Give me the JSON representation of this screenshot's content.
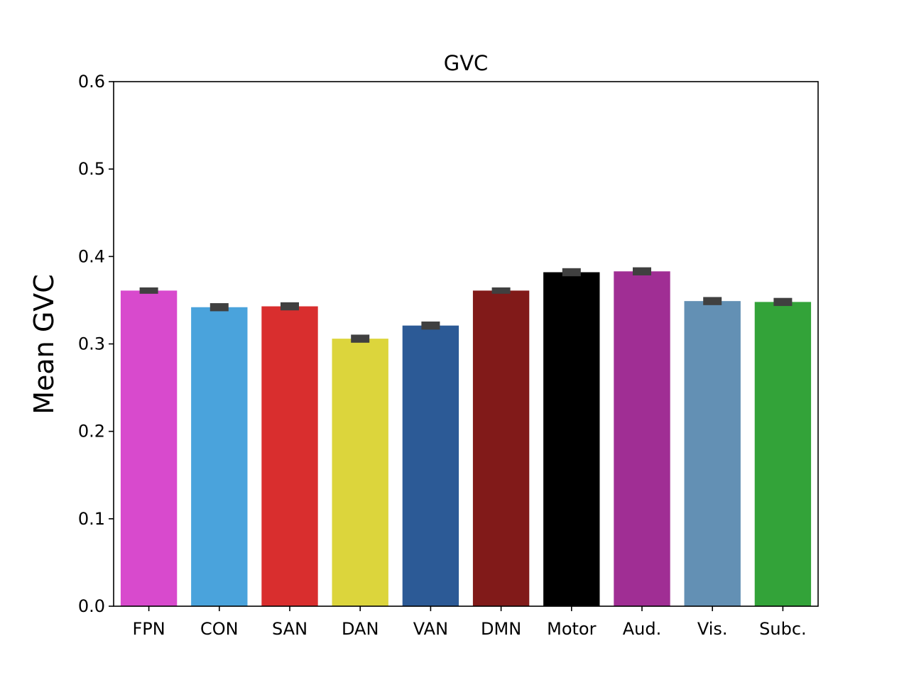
{
  "chart_data": {
    "type": "bar",
    "title": "GVC",
    "xlabel": "",
    "ylabel": "Mean GVC",
    "ylim": [
      0,
      0.6
    ],
    "yticks": [
      "0.0",
      "0.1",
      "0.2",
      "0.3",
      "0.4",
      "0.5",
      "0.6"
    ],
    "categories": [
      "FPN",
      "CON",
      "SAN",
      "DAN",
      "VAN",
      "DMN",
      "Motor",
      "Aud.",
      "Vis.",
      "Subc."
    ],
    "values": [
      0.361,
      0.342,
      0.343,
      0.306,
      0.321,
      0.361,
      0.382,
      0.383,
      0.349,
      0.348
    ],
    "errors": [
      0.002,
      0.003,
      0.003,
      0.003,
      0.003,
      0.002,
      0.003,
      0.003,
      0.003,
      0.003
    ],
    "colors": [
      "#d84acd",
      "#4aa3dc",
      "#d92e2e",
      "#dcd53c",
      "#2c5a96",
      "#811a19",
      "#000000",
      "#a02e94",
      "#6390b4",
      "#33a339"
    ],
    "error_color": "#404040",
    "grid": false,
    "legend": "none"
  }
}
